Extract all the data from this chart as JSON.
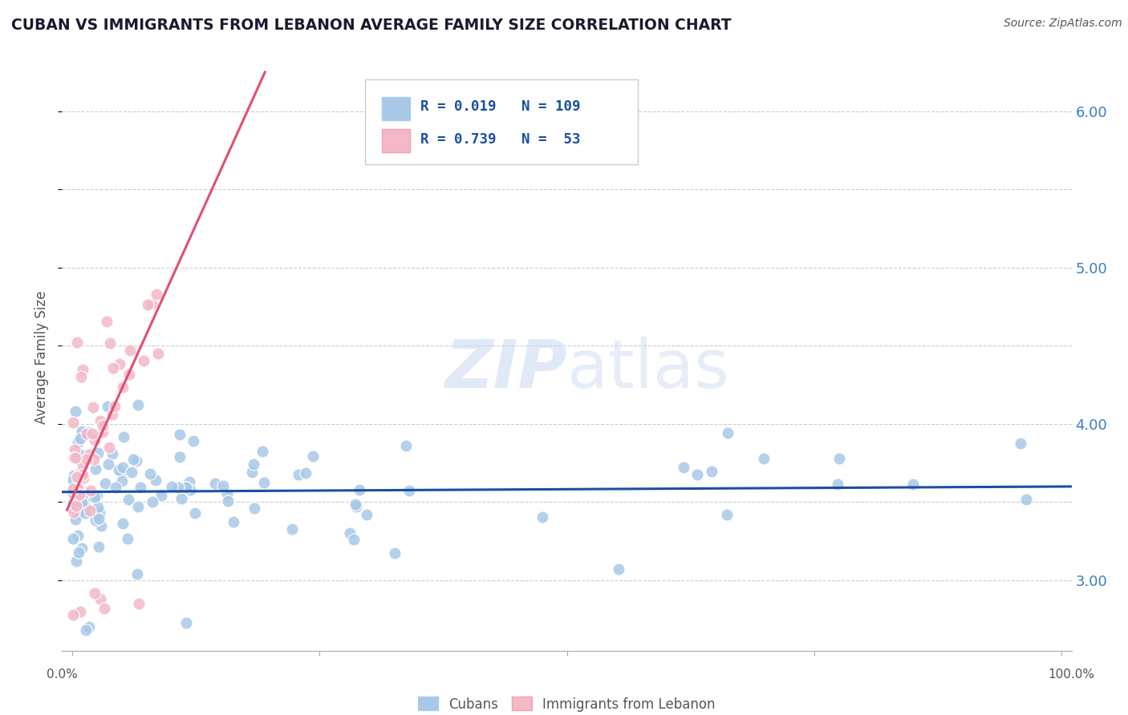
{
  "title": "CUBAN VS IMMIGRANTS FROM LEBANON AVERAGE FAMILY SIZE CORRELATION CHART",
  "source": "Source: ZipAtlas.com",
  "ylabel": "Average Family Size",
  "ylim": [
    2.55,
    6.3
  ],
  "xlim": [
    -0.01,
    1.01
  ],
  "yticks": [
    3.0,
    4.0,
    5.0,
    6.0
  ],
  "blue_color": "#a8c8e8",
  "pink_color": "#f4b8c8",
  "blue_line_color": "#1a4fa0",
  "pink_line_color": "#e05070",
  "blue_R": 0.019,
  "blue_N": 109,
  "pink_R": 0.739,
  "pink_N": 53,
  "watermark_zip": "ZIP",
  "watermark_atlas": "atlas",
  "background_color": "#ffffff",
  "grid_color": "#cccccc",
  "title_color": "#1a1a2e",
  "source_color": "#555555",
  "axis_label_color": "#555555",
  "tick_color": "#3a7ebf",
  "legend_text_color": "#1a4fa0"
}
